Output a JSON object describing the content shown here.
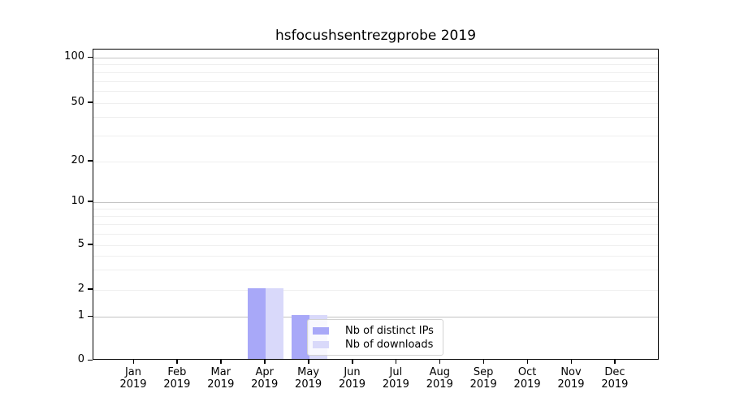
{
  "title": "hsfocushsentrezgprobe 2019",
  "y_axis": {
    "tick_labels": [
      "100",
      "50",
      "20",
      "10",
      "5",
      "2",
      "1",
      "0"
    ]
  },
  "x_axis": {
    "months": [
      "Jan",
      "Feb",
      "Mar",
      "Apr",
      "May",
      "Jun",
      "Jul",
      "Aug",
      "Sep",
      "Oct",
      "Nov",
      "Dec"
    ],
    "year": "2019"
  },
  "legend": {
    "items": [
      {
        "label": "Nb of distinct IPs",
        "color": "#a8a8f8"
      },
      {
        "label": "Nb of downloads",
        "color": "#d9d9fa"
      }
    ]
  },
  "colors": {
    "bar_dark": "#a8a8f8",
    "bar_light": "#d9d9fa",
    "grid_major": "#c3c3c3",
    "grid_minor": "#efefef",
    "axis": "#000000",
    "legend_border": "#d2d2d2"
  },
  "chart_data": {
    "type": "bar",
    "title": "hsfocushsentrezgprobe 2019",
    "categories": [
      "Jan 2019",
      "Feb 2019",
      "Mar 2019",
      "Apr 2019",
      "May 2019",
      "Jun 2019",
      "Jul 2019",
      "Aug 2019",
      "Sep 2019",
      "Oct 2019",
      "Nov 2019",
      "Dec 2019"
    ],
    "series": [
      {
        "name": "Nb of distinct IPs",
        "color": "#a8a8f8",
        "values": [
          0,
          0,
          0,
          2,
          1,
          0,
          0,
          0,
          0,
          0,
          0,
          0
        ]
      },
      {
        "name": "Nb of downloads",
        "color": "#d9d9fa",
        "values": [
          0,
          0,
          0,
          2,
          1,
          0,
          0,
          0,
          0,
          0,
          0,
          0
        ]
      }
    ],
    "xlabel": "",
    "ylabel": "",
    "yscale": "symlog",
    "yticks": [
      0,
      1,
      2,
      5,
      10,
      20,
      50,
      100
    ],
    "ylim": [
      0,
      115
    ],
    "grid": "horizontal",
    "legend_position": "inside lower-center"
  }
}
